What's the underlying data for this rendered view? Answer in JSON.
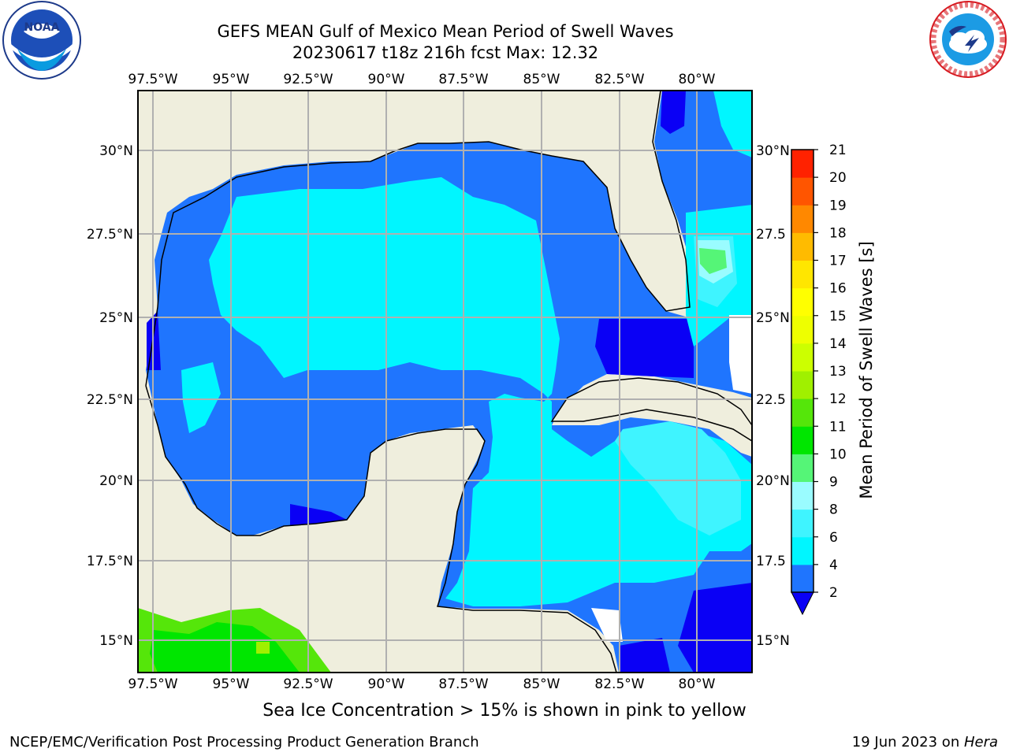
{
  "title": {
    "line1": "GEFS MEAN Gulf of Mexico Mean Period of Swell Waves",
    "line2": "20230617 t18z 216h fcst   Max: 12.32"
  },
  "logos": {
    "left": {
      "name": "noaa-logo",
      "text": "NOAA"
    },
    "right": {
      "name": "nws-logo",
      "text": "NATIONAL WEATHER SERVICE"
    }
  },
  "map": {
    "lon_ticks": [
      "97.5°W",
      "95°W",
      "92.5°W",
      "90°W",
      "87.5°W",
      "85°W",
      "82.5°W",
      "80°W"
    ],
    "lat_ticks_left": [
      "30°N",
      "27.5°N",
      "25°N",
      "22.5°N",
      "20°N",
      "17.5°N",
      "15°N"
    ],
    "lat_ticks_right": [
      "30°N",
      "27.5",
      "25°N",
      "22.5",
      "20°N",
      "17.5",
      "15°N"
    ],
    "colors": {
      "land": "#efeedd",
      "ocean_2_4": "#1f75fe",
      "ocean_below_2": "#0a00f5",
      "ocean_4_6": "#00f6ff",
      "ocean_6_8": "#3ff4ff",
      "ocean_8_9": "#9afcff",
      "green_9_10": "#55f577",
      "green_10_11": "#00e600",
      "green_11_12": "#55e60a"
    }
  },
  "colorbar": {
    "label": "Mean Period of Swell Waves [s]",
    "ticks": [
      "21",
      "20",
      "19",
      "18",
      "17",
      "16",
      "15",
      "14",
      "13",
      "12",
      "11",
      "10",
      "9",
      "8",
      "6",
      "4",
      "2"
    ],
    "colors": [
      "#0a00f5",
      "#1f75fe",
      "#00f6ff",
      "#3ff4ff",
      "#9afcff",
      "#55f577",
      "#00e600",
      "#55e60a",
      "#a0f000",
      "#ccff00",
      "#eeff00",
      "#ffff00",
      "#ffe600",
      "#ffbb00",
      "#ff8800",
      "#ff5500",
      "#ff2200",
      "#ff0000"
    ]
  },
  "ice_note": "Sea Ice Concentration > 15% is shown in pink to yellow",
  "footer": {
    "left": "NCEP/EMC/Verification Post Processing Product Generation Branch",
    "right_date": "19 Jun 2023 on ",
    "right_host": "Hera"
  }
}
